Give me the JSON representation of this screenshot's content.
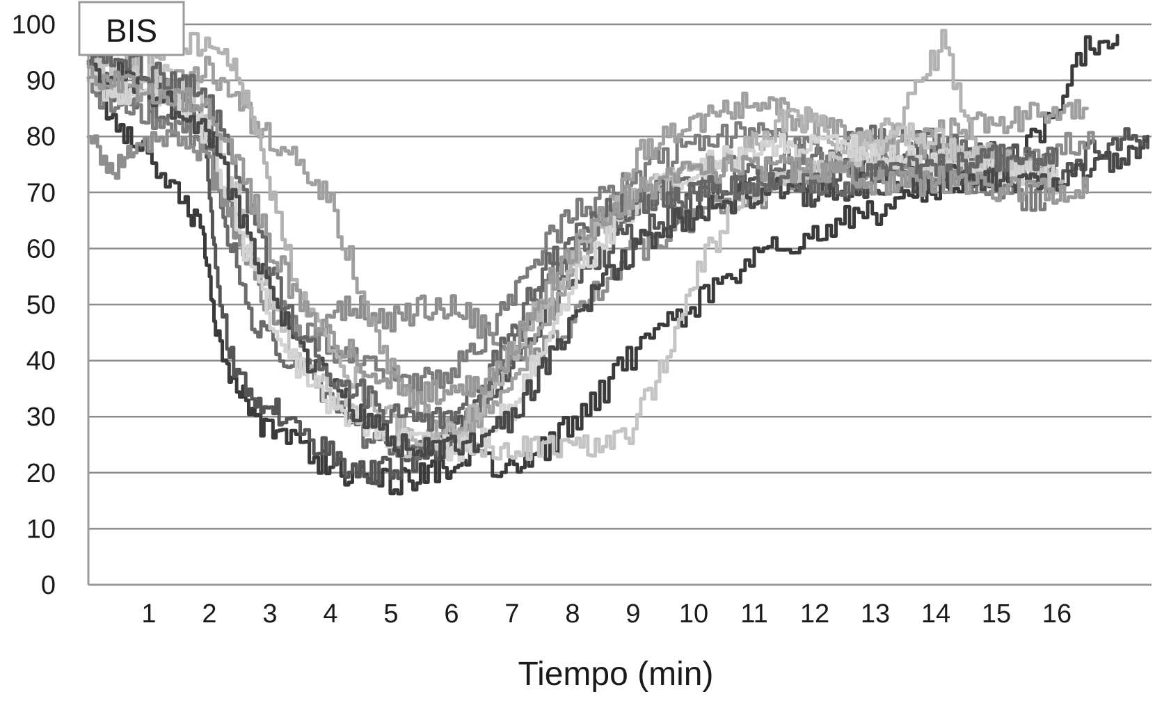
{
  "chart_data": {
    "type": "line",
    "title": "",
    "ylabel": "BIS",
    "xlabel": "Tiempo (min)",
    "ylim": [
      0,
      100
    ],
    "yticks": [
      "0",
      "10",
      "20",
      "30",
      "40",
      "50",
      "60",
      "70",
      "80",
      "90",
      "100"
    ],
    "xticks": [
      "1",
      "2",
      "3",
      "4",
      "5",
      "6",
      "7",
      "8",
      "9",
      "10",
      "11",
      "12",
      "13",
      "14",
      "15",
      "16"
    ],
    "xlim": [
      0,
      17.5
    ],
    "grid": "horizontal",
    "colors": {
      "grid": "#8c8c8c",
      "axis": "#9a9a9a"
    },
    "series": [
      {
        "color": "#3a3a3a",
        "x": [
          0,
          0.4,
          0.9,
          1.5,
          1.9,
          2.1,
          2.4,
          2.8,
          3.2,
          3.8,
          4.3,
          4.8,
          5.3,
          5.8,
          6.3,
          6.9,
          7.4,
          8,
          8.6,
          9.2,
          9.8,
          10.4,
          11,
          11.6,
          12.2,
          12.8,
          13.4,
          14,
          14.6,
          15.2,
          15.8,
          16.4,
          17
        ],
        "y": [
          93,
          83,
          78,
          70,
          62,
          45,
          36,
          29,
          27,
          22,
          20,
          18,
          19,
          21,
          22,
          21,
          23,
          29,
          36,
          44,
          48,
          53,
          58,
          61,
          64,
          66,
          68,
          70,
          73,
          75,
          82,
          95,
          98
        ]
      },
      {
        "color": "#555555",
        "x": [
          0,
          0.5,
          1,
          1.5,
          1.9,
          2.1,
          2.4,
          2.8,
          3.2,
          3.8,
          4.3,
          4.8,
          5.3,
          5.8,
          6.3,
          6.9,
          7.4,
          8,
          8.6,
          9.2,
          9.8,
          10.4,
          11,
          11.6,
          12.2,
          12.8,
          13.4,
          14,
          14.6,
          15.2,
          15.8,
          16.4,
          17,
          17.5
        ],
        "y": [
          92,
          91,
          90,
          88,
          82,
          55,
          38,
          33,
          30,
          25,
          21,
          20,
          22,
          25,
          30,
          38,
          46,
          55,
          60,
          64,
          67,
          70,
          71,
          72,
          73,
          74,
          75,
          76,
          76,
          77,
          72,
          76,
          80,
          78
        ]
      },
      {
        "color": "#6b6b6b",
        "x": [
          0,
          0.5,
          1,
          1.5,
          2,
          2.3,
          2.7,
          3.1,
          3.6,
          4.1,
          4.6,
          5.1,
          5.6,
          6.1,
          6.6,
          7.1,
          7.6,
          8.2,
          8.8,
          9.4,
          10,
          10.6,
          11.2,
          11.8,
          12.4,
          13,
          13.6,
          14.2,
          14.8,
          15.4,
          16
        ],
        "y": [
          90,
          88,
          86,
          84,
          80,
          62,
          48,
          42,
          38,
          32,
          26,
          24,
          25,
          28,
          34,
          44,
          54,
          62,
          67,
          70,
          72,
          74,
          75,
          76,
          78,
          80,
          80,
          78,
          76,
          76,
          76
        ]
      },
      {
        "color": "#7c7c7c",
        "x": [
          0,
          0.5,
          1,
          1.5,
          2,
          2.5,
          3,
          3.5,
          4,
          4.5,
          5,
          5.5,
          6,
          6.5,
          7,
          7.5,
          8,
          8.6,
          9.2,
          9.8,
          10.4,
          11,
          11.6,
          12.2,
          12.8,
          13.4,
          14,
          14.6,
          15.2,
          15.8
        ],
        "y": [
          88,
          86,
          84,
          82,
          78,
          62,
          52,
          46,
          42,
          40,
          38,
          36,
          38,
          44,
          52,
          60,
          66,
          70,
          74,
          78,
          80,
          80,
          78,
          76,
          75,
          74,
          73,
          72,
          70,
          68
        ]
      },
      {
        "color": "#8e8e8e",
        "x": [
          0,
          0.4,
          0.8,
          1.3,
          1.8,
          2.2,
          2.6,
          3,
          3.5,
          4,
          4.5,
          5,
          5.5,
          6,
          6.5,
          7,
          7.6,
          8.2,
          8.8,
          9.4,
          10,
          10.6,
          11.2,
          11.8,
          12.4,
          13,
          13.6,
          14.2,
          14.8,
          15.4,
          16,
          16.6
        ],
        "y": [
          80,
          74,
          78,
          80,
          78,
          70,
          58,
          48,
          44,
          48,
          50,
          47,
          49,
          50,
          46,
          40,
          42,
          50,
          58,
          62,
          66,
          68,
          70,
          72,
          74,
          75,
          76,
          76,
          76,
          75,
          78,
          79
        ]
      },
      {
        "color": "#a0a0a0",
        "x": [
          0,
          0.5,
          1,
          1.5,
          2,
          2.5,
          3,
          3.5,
          4,
          4.5,
          5,
          5.5,
          6,
          6.5,
          7,
          7.5,
          8,
          8.5,
          9,
          9.5,
          10,
          10.5,
          11,
          11.5,
          12,
          12.5,
          13,
          13.5,
          14,
          14.5,
          15,
          15.5,
          16,
          16.5
        ],
        "y": [
          91,
          90,
          89,
          90,
          92,
          85,
          80,
          75,
          68,
          52,
          38,
          30,
          28,
          30,
          36,
          46,
          56,
          66,
          76,
          80,
          82,
          84,
          86,
          84,
          82,
          80,
          79,
          78,
          80,
          82,
          82,
          84,
          85,
          85
        ]
      },
      {
        "color": "#b3b3b3",
        "x": [
          0,
          0.5,
          1,
          1.5,
          2,
          2.4,
          2.8,
          3.2,
          3.6,
          4.1,
          4.6,
          5.1,
          5.6,
          6.1,
          6.6,
          7.1,
          7.6,
          8.1,
          8.6,
          9.1,
          9.6,
          10.1,
          10.6,
          11.1,
          11.6,
          12.1,
          12.6,
          13.1,
          13.6,
          14.1,
          14.6,
          15.1,
          15.6,
          16.1
        ],
        "y": [
          93,
          92,
          94,
          96,
          97,
          92,
          80,
          62,
          48,
          40,
          34,
          28,
          26,
          28,
          34,
          44,
          52,
          60,
          66,
          70,
          72,
          74,
          76,
          80,
          84,
          82,
          78,
          80,
          86,
          97,
          80,
          76,
          74,
          72
        ]
      },
      {
        "color": "#c4c4c4",
        "x": [
          0,
          0.5,
          1,
          1.5,
          2,
          2.5,
          3,
          3.5,
          4,
          4.5,
          5,
          5.5,
          6,
          6.5,
          7,
          7.5,
          8,
          8.5,
          9,
          9.5,
          10,
          10.5,
          11,
          11.5,
          12,
          12.5,
          13,
          13.5,
          14,
          14.5,
          15,
          15.5,
          16
        ],
        "y": [
          92,
          92,
          91,
          90,
          84,
          68,
          50,
          40,
          34,
          30,
          26,
          24,
          25,
          25,
          24,
          24,
          24,
          25,
          28,
          40,
          55,
          64,
          70,
          73,
          74,
          76,
          78,
          80,
          79,
          76,
          74,
          73,
          72
        ]
      },
      {
        "color": "#d3d3d3",
        "x": [
          0,
          0.5,
          1,
          1.5,
          2,
          2.5,
          3,
          3.5,
          4,
          4.5,
          5,
          5.5,
          6,
          6.5,
          7,
          7.5,
          8,
          8.5,
          9,
          9.5,
          10,
          10.5,
          11,
          11.5,
          12,
          12.5,
          13,
          13.5,
          14,
          14.5,
          15,
          15.5,
          16
        ],
        "y": [
          90,
          88,
          88,
          86,
          80,
          62,
          48,
          38,
          32,
          28,
          26,
          25,
          24,
          26,
          32,
          42,
          54,
          62,
          68,
          72,
          74,
          76,
          77,
          78,
          78,
          78,
          77,
          76,
          75,
          75,
          74,
          74,
          74
        ]
      },
      {
        "color": "#484848",
        "x": [
          0,
          0.5,
          1,
          1.5,
          2,
          2.5,
          3,
          3.5,
          4,
          4.5,
          5,
          5.5,
          6,
          6.5,
          7,
          7.5,
          8,
          8.5,
          9,
          9.5,
          10,
          10.5,
          11,
          11.5,
          12,
          12.5,
          13,
          13.5,
          14,
          14.5,
          15,
          15.5,
          16,
          16.5,
          17,
          17.5
        ],
        "y": [
          91,
          92,
          88,
          84,
          80,
          66,
          52,
          42,
          36,
          30,
          26,
          24,
          24,
          26,
          30,
          38,
          46,
          54,
          60,
          64,
          66,
          68,
          70,
          70,
          70,
          71,
          72,
          72,
          73,
          73,
          72,
          72,
          72,
          73,
          76,
          80
        ]
      },
      {
        "color": "#666666",
        "x": [
          0,
          0.5,
          1,
          1.5,
          2,
          2.5,
          3,
          3.5,
          4,
          4.5,
          5,
          5.5,
          6,
          6.5,
          7,
          7.5,
          8,
          8.5,
          9,
          9.5,
          10,
          10.5,
          11,
          11.5,
          12,
          12.5,
          13,
          13.5,
          14,
          14.5,
          15,
          15.5,
          16
        ],
        "y": [
          93,
          94,
          92,
          90,
          86,
          72,
          56,
          44,
          38,
          34,
          30,
          28,
          30,
          36,
          46,
          56,
          62,
          66,
          68,
          70,
          70,
          71,
          72,
          72,
          72,
          72,
          73,
          74,
          74,
          75,
          76,
          76,
          76
        ]
      },
      {
        "color": "#999999",
        "x": [
          0,
          0.5,
          1,
          1.5,
          2,
          2.5,
          3,
          3.5,
          4,
          4.5,
          5,
          5.5,
          6,
          6.5,
          7,
          7.5,
          8,
          8.5,
          9,
          9.5,
          10,
          10.5,
          11,
          11.5,
          12,
          12.5,
          13,
          13.5,
          14,
          14.5,
          15,
          15.5,
          16,
          16.5
        ],
        "y": [
          90,
          90,
          88,
          87,
          84,
          74,
          60,
          50,
          44,
          40,
          36,
          34,
          34,
          36,
          42,
          52,
          60,
          66,
          70,
          72,
          74,
          74,
          74,
          74,
          74,
          73,
          72,
          72,
          72,
          72,
          71,
          71,
          70,
          70
        ]
      }
    ]
  }
}
